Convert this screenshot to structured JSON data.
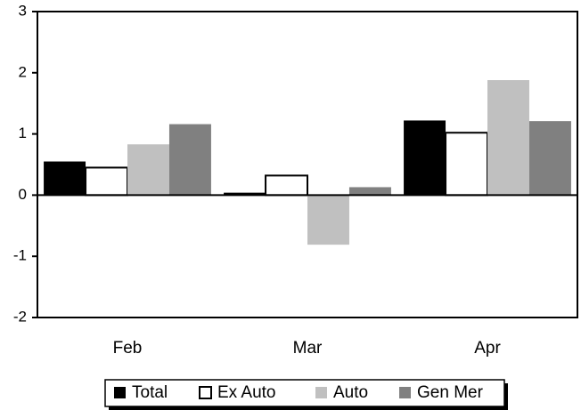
{
  "chart_data": {
    "type": "bar",
    "categories": [
      "Feb",
      "Mar",
      "Apr"
    ],
    "series": [
      {
        "name": "Total",
        "color": "#000000",
        "values": [
          0.55,
          0.04,
          1.22
        ]
      },
      {
        "name": "Ex Auto",
        "color": "#ffffff",
        "values": [
          0.45,
          0.32,
          1.02
        ]
      },
      {
        "name": "Auto",
        "color": "#c0c0c0",
        "values": [
          0.83,
          -0.81,
          1.88
        ]
      },
      {
        "name": "Gen Mer",
        "color": "#808080",
        "values": [
          1.16,
          0.13,
          1.21
        ]
      }
    ],
    "ylim": [
      -2,
      3
    ],
    "yticks": [
      -2,
      -1,
      0,
      1,
      2,
      3
    ],
    "legend": "bottom"
  }
}
